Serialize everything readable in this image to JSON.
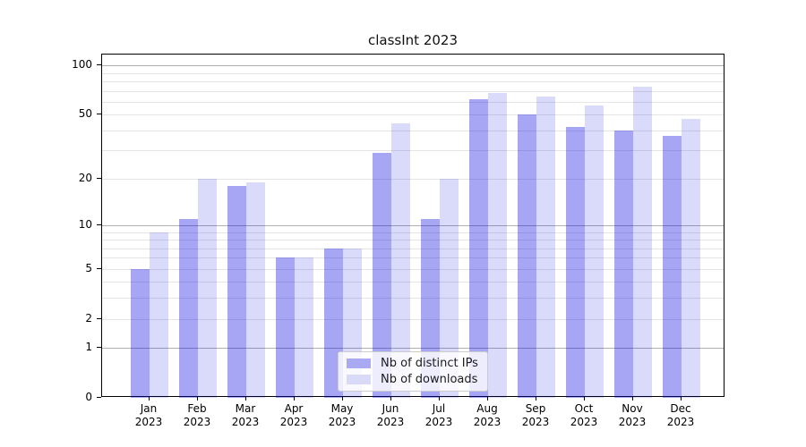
{
  "title": "classInt 2023",
  "legend": {
    "items": [
      {
        "label": "Nb of distinct IPs",
        "series": "distinct_ips"
      },
      {
        "label": "Nb of downloads",
        "series": "downloads"
      }
    ]
  },
  "colors": {
    "distinct_ips": "rgba(0,0,224,0.35)",
    "downloads": "rgba(0,0,224,0.145)",
    "distinct_ips_swatch": "#aaaaf2",
    "downloads_swatch": "#d9d9f8",
    "grid_major": "#b0b0b0",
    "grid_minor": "#e4e4e4",
    "spine": "#000000",
    "text": "#000000"
  },
  "y_axis": {
    "scale": "log1p",
    "tick_labels": [
      "100",
      "50",
      "20",
      "10",
      "5",
      "2",
      "1",
      "0"
    ],
    "tick_values": [
      100,
      50,
      20,
      10,
      5,
      2,
      1,
      0
    ]
  },
  "x_axis": {
    "months": [
      "Jan",
      "Feb",
      "Mar",
      "Apr",
      "May",
      "Jun",
      "Jul",
      "Aug",
      "Sep",
      "Oct",
      "Nov",
      "Dec"
    ],
    "year": "2023"
  },
  "chart_data": {
    "type": "bar",
    "title": "classInt 2023",
    "xlabel": "",
    "ylabel": "",
    "yscale": "log1p",
    "ylim": [
      0,
      116
    ],
    "grid": "horizontal major+minor",
    "legend_position": "lower center",
    "categories": [
      "Jan 2023",
      "Feb 2023",
      "Mar 2023",
      "Apr 2023",
      "May 2023",
      "Jun 2023",
      "Jul 2023",
      "Aug 2023",
      "Sep 2023",
      "Oct 2023",
      "Nov 2023",
      "Dec 2023"
    ],
    "series": [
      {
        "name": "Nb of distinct IPs",
        "values": [
          5,
          11,
          18,
          6,
          7,
          29,
          11,
          62,
          50,
          42,
          40,
          37
        ]
      },
      {
        "name": "Nb of downloads",
        "values": [
          9,
          20,
          19,
          6,
          7,
          44,
          20,
          68,
          65,
          57,
          74,
          47
        ]
      }
    ]
  }
}
